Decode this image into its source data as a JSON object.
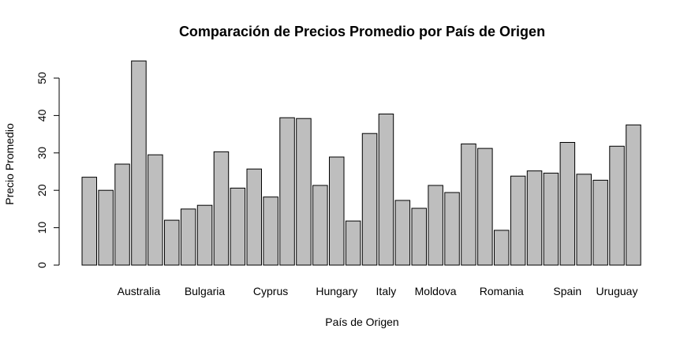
{
  "chart_data": {
    "type": "bar",
    "title": "Comparación de Precios Promedio por País de Origen",
    "xlabel": "País de Origen",
    "ylabel": "Precio Promedio",
    "ylim": [
      0,
      55
    ],
    "yticks": [
      0,
      10,
      20,
      30,
      40,
      50
    ],
    "grid": false,
    "bar_color": "#bebebe",
    "values": [
      23.5,
      20.0,
      27.0,
      54.6,
      29.5,
      12.0,
      15.0,
      16.0,
      30.3,
      20.6,
      25.7,
      18.2,
      39.4,
      39.2,
      21.3,
      28.9,
      11.8,
      35.2,
      40.4,
      17.3,
      15.2,
      21.3,
      19.4,
      32.4,
      31.2,
      9.3,
      23.8,
      25.2,
      24.6,
      32.8,
      24.3,
      22.7,
      31.8,
      37.5
    ],
    "x_tick_labels": [
      {
        "bar": 3,
        "label": "Australia"
      },
      {
        "bar": 7,
        "label": "Bulgaria"
      },
      {
        "bar": 11,
        "label": "Cyprus"
      },
      {
        "bar": 15,
        "label": "Hungary"
      },
      {
        "bar": 18,
        "label": "Italy"
      },
      {
        "bar": 21,
        "label": "Moldova"
      },
      {
        "bar": 25,
        "label": "Romania"
      },
      {
        "bar": 29,
        "label": "Spain"
      },
      {
        "bar": 32,
        "label": "Uruguay"
      }
    ]
  }
}
